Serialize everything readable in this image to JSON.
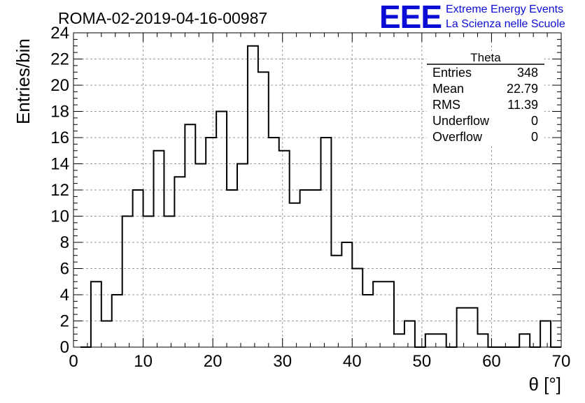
{
  "header": {
    "run_title": "ROMA-02-2019-04-16-00987",
    "logo_text": "EEE",
    "logo_line1": "Extreme Energy Events",
    "logo_line2": "La Scienza nelle Scuole"
  },
  "colors": {
    "logo": "#0b0bd6",
    "axis": "#000000",
    "grid": "#999999",
    "histogram": "#000000",
    "background": "#ffffff"
  },
  "stats": {
    "title": "Theta",
    "rows": [
      {
        "label": "Entries",
        "value": "348"
      },
      {
        "label": "Mean",
        "value": "22.79"
      },
      {
        "label": "RMS",
        "value": "11.39"
      },
      {
        "label": "Underflow",
        "value": "0"
      },
      {
        "label": "Overflow",
        "value": "0"
      }
    ]
  },
  "chart_data": {
    "type": "bar",
    "title": "ROMA-02-2019-04-16-00987",
    "xlabel": "θ [°]",
    "ylabel": "Entries/bin",
    "xlim": [
      0,
      70
    ],
    "ylim": [
      0,
      24
    ],
    "bin_start": 1,
    "bin_width": 1.5,
    "xticks": [
      0,
      10,
      20,
      30,
      40,
      50,
      60,
      70
    ],
    "yticks": [
      0,
      2,
      4,
      6,
      8,
      10,
      12,
      14,
      16,
      18,
      20,
      22,
      24
    ],
    "grid": true,
    "series": [
      {
        "values": [
          0,
          5,
          2,
          4,
          10,
          12,
          10,
          15,
          10,
          13,
          17,
          14,
          16,
          18,
          12,
          14,
          23,
          21,
          16,
          15,
          11,
          12,
          12,
          16,
          7,
          8,
          6,
          4,
          5,
          5,
          1,
          2,
          0,
          1,
          1,
          0,
          3,
          3,
          1,
          0,
          0,
          0,
          1,
          0,
          2,
          0
        ]
      }
    ]
  }
}
